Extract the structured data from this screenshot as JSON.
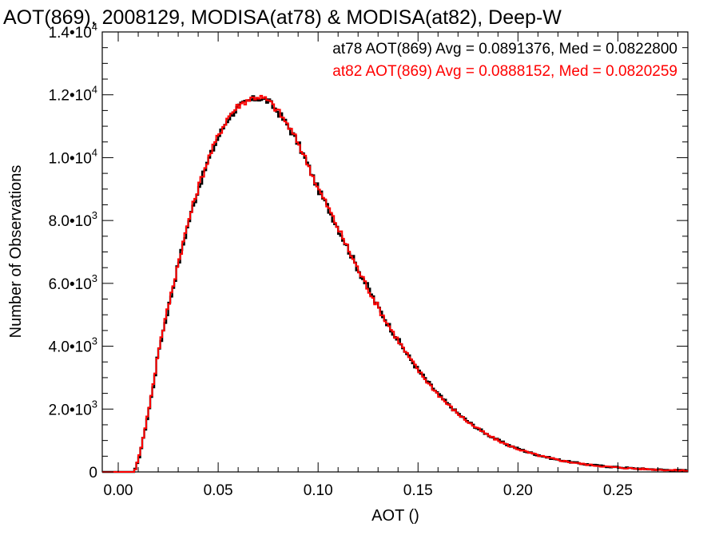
{
  "chart_data": {
    "type": "line",
    "title": "AOT(869), 2008129, MODISA(at78) & MODISA(at82), Deep-W",
    "xlabel": "AOT ()",
    "ylabel": "Number of Observations",
    "xlim": [
      -0.008,
      0.285
    ],
    "ylim": [
      0,
      14000
    ],
    "grid": false,
    "x_tick_labels": [
      "0.00",
      "0.05",
      "0.10",
      "0.15",
      "0.20",
      "0.25"
    ],
    "x_tick_values": [
      0.0,
      0.05,
      0.1,
      0.15,
      0.2,
      0.25
    ],
    "y_ticks": [
      {
        "value": 0,
        "mantissa": "0",
        "exponent": ""
      },
      {
        "value": 2000,
        "mantissa": "2.0•10",
        "exponent": "3"
      },
      {
        "value": 4000,
        "mantissa": "4.0•10",
        "exponent": "3"
      },
      {
        "value": 6000,
        "mantissa": "6.0•10",
        "exponent": "3"
      },
      {
        "value": 8000,
        "mantissa": "8.0•10",
        "exponent": "3"
      },
      {
        "value": 10000,
        "mantissa": "1.0•10",
        "exponent": "4"
      },
      {
        "value": 12000,
        "mantissa": "1.2•10",
        "exponent": "4"
      },
      {
        "value": 14000,
        "mantissa": "1.4•10",
        "exponent": "4"
      }
    ],
    "annotations": [
      {
        "text": "at78 AOT(869) Avg = 0.0891376, Med = 0.0822800",
        "color": "#000000"
      },
      {
        "text": "at82 AOT(869) Avg = 0.0888152, Med = 0.0820259",
        "color": "#ff0000"
      }
    ],
    "series": [
      {
        "color": "#000000",
        "x": [
          -0.008,
          0.008,
          0.01,
          0.012,
          0.015,
          0.018,
          0.02,
          0.025,
          0.03,
          0.035,
          0.04,
          0.045,
          0.05,
          0.055,
          0.06,
          0.065,
          0.07,
          0.075,
          0.08,
          0.085,
          0.09,
          0.095,
          0.1,
          0.105,
          0.11,
          0.115,
          0.12,
          0.125,
          0.13,
          0.135,
          0.14,
          0.145,
          0.15,
          0.155,
          0.16,
          0.165,
          0.17,
          0.175,
          0.18,
          0.185,
          0.19,
          0.195,
          0.2,
          0.205,
          0.21,
          0.215,
          0.22,
          0.225,
          0.23,
          0.235,
          0.24,
          0.245,
          0.25,
          0.255,
          0.26,
          0.265,
          0.27,
          0.275,
          0.28,
          0.285
        ],
        "values": [
          0,
          0,
          350,
          900,
          1850,
          2900,
          3800,
          5200,
          6600,
          7900,
          9000,
          9900,
          10650,
          11250,
          11600,
          11800,
          11900,
          11800,
          11450,
          11000,
          10450,
          9750,
          9000,
          8400,
          7750,
          7100,
          6450,
          5850,
          5250,
          4700,
          4200,
          3700,
          3250,
          2850,
          2480,
          2150,
          1860,
          1600,
          1380,
          1180,
          1010,
          860,
          740,
          630,
          540,
          460,
          390,
          330,
          280,
          235,
          200,
          170,
          145,
          125,
          105,
          90,
          75,
          62,
          52,
          45
        ]
      },
      {
        "color": "#ff0000",
        "x": [
          -0.008,
          0.008,
          0.01,
          0.012,
          0.015,
          0.018,
          0.02,
          0.025,
          0.03,
          0.035,
          0.04,
          0.045,
          0.05,
          0.055,
          0.06,
          0.065,
          0.07,
          0.075,
          0.08,
          0.085,
          0.09,
          0.095,
          0.1,
          0.105,
          0.11,
          0.115,
          0.12,
          0.125,
          0.13,
          0.135,
          0.14,
          0.145,
          0.15,
          0.155,
          0.16,
          0.165,
          0.17,
          0.175,
          0.18,
          0.185,
          0.19,
          0.195,
          0.2,
          0.205,
          0.21,
          0.215,
          0.22,
          0.225,
          0.23,
          0.235,
          0.24,
          0.245,
          0.25,
          0.255,
          0.26,
          0.265,
          0.27,
          0.275,
          0.28,
          0.285
        ],
        "values": [
          0,
          0,
          380,
          950,
          1900,
          2950,
          3850,
          5250,
          6650,
          7950,
          9050,
          9950,
          10700,
          11300,
          11650,
          11850,
          11950,
          11820,
          11480,
          11020,
          10480,
          9780,
          9020,
          8420,
          7760,
          7100,
          6440,
          5840,
          5240,
          4690,
          4190,
          3690,
          3240,
          2840,
          2470,
          2140,
          1850,
          1590,
          1370,
          1170,
          1000,
          850,
          730,
          620,
          530,
          450,
          385,
          325,
          275,
          230,
          195,
          165,
          140,
          120,
          100,
          85,
          72,
          60,
          50,
          43
        ]
      }
    ]
  }
}
